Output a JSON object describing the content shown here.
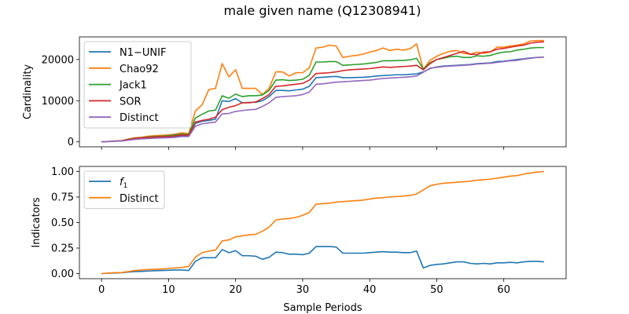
{
  "figure": {
    "title": "male given name (Q12308941)"
  },
  "chart_data": [
    {
      "type": "line",
      "ylabel": "Cardinality",
      "xlim": [
        -3.3,
        69.3
      ],
      "ylim": [
        -1200,
        25500
      ],
      "xticks": [
        0,
        10,
        20,
        30,
        40,
        50,
        60
      ],
      "yticks": [
        0,
        10000,
        20000
      ],
      "ytick_labels": [
        "0",
        "10000",
        "20000"
      ],
      "show_xtick_labels": false,
      "legend": "upper-left",
      "x": [
        0,
        1,
        2,
        3,
        4,
        5,
        6,
        7,
        8,
        9,
        10,
        11,
        12,
        13,
        14,
        15,
        16,
        17,
        18,
        19,
        20,
        21,
        22,
        23,
        24,
        25,
        26,
        27,
        28,
        29,
        30,
        31,
        32,
        33,
        34,
        35,
        36,
        37,
        38,
        39,
        40,
        41,
        42,
        43,
        44,
        45,
        46,
        47,
        48,
        49,
        50,
        51,
        52,
        53,
        54,
        55,
        56,
        57,
        58,
        59,
        60,
        61,
        62,
        63,
        64,
        65,
        66
      ],
      "series": [
        {
          "name": "N1−UNIF",
          "color": "#1f77b4",
          "values": [
            0,
            80,
            180,
            220,
            500,
            800,
            950,
            1000,
            1100,
            1150,
            1200,
            1300,
            1500,
            1500,
            4500,
            5000,
            5200,
            5500,
            10000,
            9800,
            10500,
            9500,
            9600,
            9600,
            10000,
            11000,
            12500,
            12500,
            12400,
            12600,
            12800,
            13500,
            15600,
            15700,
            15800,
            15900,
            15600,
            15600,
            15650,
            15700,
            15800,
            16000,
            16100,
            16200,
            16300,
            16300,
            16400,
            16500,
            17000,
            17800,
            18200,
            18400,
            18500,
            18600,
            18700,
            18800,
            19000,
            19100,
            19200,
            19500,
            19600,
            19800,
            20000,
            20200,
            20400,
            20500,
            20600
          ]
        },
        {
          "name": "Chao92",
          "color": "#ff7f0e",
          "values": [
            0,
            100,
            200,
            300,
            700,
            1000,
            1100,
            1400,
            1500,
            1600,
            1700,
            1900,
            2200,
            2000,
            7500,
            9000,
            12700,
            13000,
            19000,
            15800,
            17500,
            13000,
            13000,
            13000,
            11500,
            13000,
            17000,
            17000,
            16000,
            16800,
            16800,
            18000,
            22800,
            23000,
            23500,
            23300,
            20500,
            20800,
            21000,
            21300,
            21800,
            22200,
            22800,
            22200,
            22500,
            22300,
            22600,
            23800,
            17600,
            19800,
            20800,
            21500,
            22000,
            22200,
            21500,
            21300,
            21800,
            21500,
            21800,
            23000,
            23000,
            23300,
            23500,
            23800,
            24500,
            24600,
            24600
          ]
        },
        {
          "name": "Jack1",
          "color": "#2ca02c",
          "values": [
            0,
            90,
            190,
            260,
            600,
            900,
            1050,
            1200,
            1300,
            1400,
            1500,
            1700,
            1900,
            1800,
            5800,
            6700,
            7500,
            7700,
            11200,
            10600,
            11600,
            11000,
            11200,
            11200,
            11400,
            12500,
            15000,
            15100,
            14900,
            15000,
            15200,
            16200,
            19400,
            19400,
            19500,
            19500,
            18600,
            18700,
            18800,
            18900,
            19100,
            19300,
            19700,
            19700,
            19750,
            19800,
            19900,
            20300,
            17700,
            19200,
            20000,
            20300,
            20700,
            20800,
            20500,
            20500,
            20900,
            20800,
            21000,
            21500,
            21800,
            21900,
            22300,
            22500,
            22800,
            22900,
            22900
          ]
        },
        {
          "name": "SOR",
          "color": "#d62728",
          "values": [
            0,
            85,
            185,
            240,
            550,
            850,
            1000,
            1100,
            1200,
            1250,
            1300,
            1450,
            1700,
            1600,
            4800,
            5200,
            5500,
            6000,
            7800,
            8400,
            8800,
            9500,
            9500,
            9700,
            10500,
            11500,
            13500,
            13600,
            13800,
            14000,
            14200,
            15000,
            16600,
            16700,
            16800,
            17000,
            17300,
            17500,
            17600,
            17700,
            17800,
            18000,
            18200,
            18100,
            18200,
            18300,
            18400,
            18600,
            17500,
            19000,
            20000,
            20500,
            21000,
            21500,
            22000,
            21300,
            21200,
            21800,
            21900,
            22500,
            22700,
            23000,
            23300,
            23500,
            24000,
            24200,
            24300
          ]
        },
        {
          "name": "Distinct",
          "color": "#9467bd",
          "values": [
            0,
            70,
            150,
            200,
            400,
            600,
            750,
            800,
            900,
            950,
            1000,
            1100,
            1300,
            1300,
            3800,
            4400,
            4600,
            4800,
            6800,
            6900,
            7400,
            7600,
            7800,
            7900,
            8600,
            9500,
            10800,
            11000,
            11100,
            11200,
            11500,
            12100,
            14000,
            14100,
            14300,
            14500,
            14600,
            14700,
            14800,
            14900,
            15000,
            15200,
            15400,
            15500,
            15600,
            15700,
            15800,
            16000,
            16900,
            17900,
            18100,
            18300,
            18400,
            18500,
            18600,
            18700,
            18900,
            19000,
            19100,
            19300,
            19500,
            19700,
            19800,
            20100,
            20300,
            20500,
            20600
          ]
        }
      ]
    },
    {
      "type": "line",
      "xlabel": "Sample Periods",
      "ylabel": "Indicators",
      "xlim": [
        -3.3,
        69.3
      ],
      "ylim": [
        -0.05,
        1.05
      ],
      "xticks": [
        0,
        10,
        20,
        30,
        40,
        50,
        60
      ],
      "xtick_labels": [
        "0",
        "10",
        "20",
        "30",
        "40",
        "50",
        "60"
      ],
      "yticks": [
        0,
        0.25,
        0.5,
        0.75,
        1
      ],
      "ytick_labels": [
        "0.00",
        "0.25",
        "0.50",
        "0.75",
        "1.00"
      ],
      "legend": "upper-left",
      "x": [
        0,
        1,
        2,
        3,
        4,
        5,
        6,
        7,
        8,
        9,
        10,
        11,
        12,
        13,
        14,
        15,
        16,
        17,
        18,
        19,
        20,
        21,
        22,
        23,
        24,
        25,
        26,
        27,
        28,
        29,
        30,
        31,
        32,
        33,
        34,
        35,
        36,
        37,
        38,
        39,
        40,
        41,
        42,
        43,
        44,
        45,
        46,
        47,
        48,
        49,
        50,
        51,
        52,
        53,
        54,
        55,
        56,
        57,
        58,
        59,
        60,
        61,
        62,
        63,
        64,
        65,
        66
      ],
      "series": [
        {
          "name": "f",
          "name_sub": "1",
          "color": "#1f77b4",
          "values": [
            0,
            0.003,
            0.005,
            0.008,
            0.015,
            0.02,
            0.022,
            0.025,
            0.028,
            0.03,
            0.032,
            0.035,
            0.035,
            0.03,
            0.12,
            0.155,
            0.155,
            0.155,
            0.235,
            0.205,
            0.225,
            0.175,
            0.175,
            0.17,
            0.14,
            0.16,
            0.21,
            0.205,
            0.19,
            0.19,
            0.185,
            0.2,
            0.265,
            0.265,
            0.265,
            0.26,
            0.2,
            0.2,
            0.2,
            0.2,
            0.205,
            0.21,
            0.215,
            0.21,
            0.21,
            0.205,
            0.205,
            0.22,
            0.055,
            0.08,
            0.09,
            0.095,
            0.105,
            0.115,
            0.115,
            0.1,
            0.095,
            0.1,
            0.095,
            0.105,
            0.105,
            0.11,
            0.105,
            0.115,
            0.12,
            0.12,
            0.115
          ]
        },
        {
          "name": "Distinct",
          "color": "#ff7f0e",
          "values": [
            0,
            0.004,
            0.008,
            0.01,
            0.02,
            0.03,
            0.035,
            0.04,
            0.042,
            0.045,
            0.05,
            0.055,
            0.06,
            0.07,
            0.16,
            0.205,
            0.22,
            0.23,
            0.32,
            0.33,
            0.36,
            0.37,
            0.38,
            0.385,
            0.415,
            0.455,
            0.525,
            0.535,
            0.54,
            0.55,
            0.57,
            0.6,
            0.68,
            0.685,
            0.69,
            0.7,
            0.705,
            0.71,
            0.715,
            0.72,
            0.73,
            0.74,
            0.745,
            0.75,
            0.755,
            0.76,
            0.765,
            0.78,
            0.82,
            0.86,
            0.875,
            0.885,
            0.89,
            0.895,
            0.9,
            0.905,
            0.915,
            0.92,
            0.925,
            0.935,
            0.945,
            0.955,
            0.96,
            0.975,
            0.985,
            0.995,
            1.0
          ]
        }
      ]
    }
  ]
}
